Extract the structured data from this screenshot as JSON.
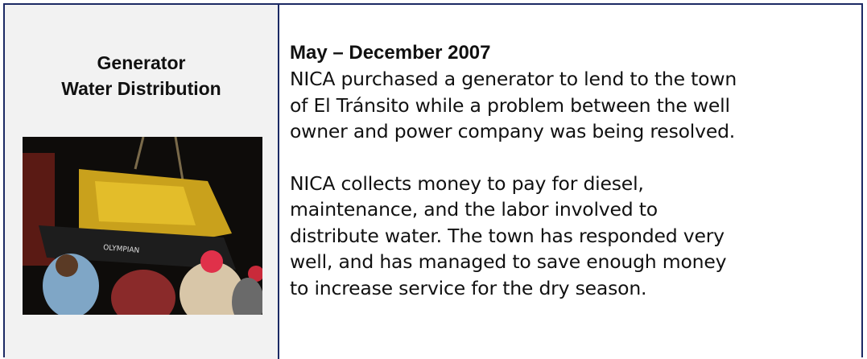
{
  "left": {
    "title_lines": [
      "Generator",
      "Water Distribution"
    ],
    "photo_text": "OLYMPIAN"
  },
  "right": {
    "heading": "May – December 2007",
    "paragraphs": [
      [
        "NICA purchased a generator to lend to the town",
        "of El Tránsito while a problem between the well",
        "owner and power company was being resolved."
      ],
      [
        "NICA collects money to pay for diesel,",
        "maintenance, and the labor involved to",
        "distribute water.  The town has responded very",
        "well, and has managed to save enough money",
        "to increase service for the dry season."
      ]
    ]
  }
}
